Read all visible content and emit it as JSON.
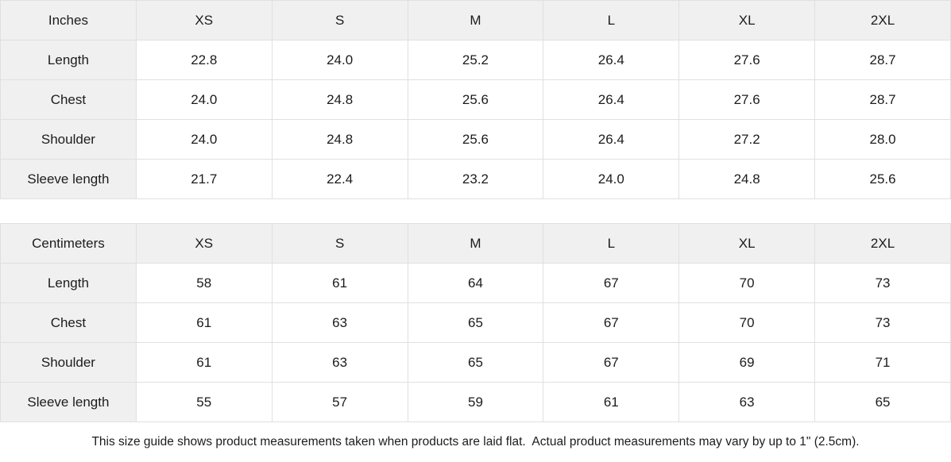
{
  "size_guide": {
    "tables": [
      {
        "unit_label": "Inches",
        "sizes": [
          "XS",
          "S",
          "M",
          "L",
          "XL",
          "2XL"
        ],
        "rows": [
          {
            "label": "Length",
            "values": [
              "22.8",
              "24.0",
              "25.2",
              "26.4",
              "27.6",
              "28.7"
            ]
          },
          {
            "label": "Chest",
            "values": [
              "24.0",
              "24.8",
              "25.6",
              "26.4",
              "27.6",
              "28.7"
            ]
          },
          {
            "label": "Shoulder",
            "values": [
              "24.0",
              "24.8",
              "25.6",
              "26.4",
              "27.2",
              "28.0"
            ]
          },
          {
            "label": "Sleeve length",
            "values": [
              "21.7",
              "22.4",
              "23.2",
              "24.0",
              "24.8",
              "25.6"
            ]
          }
        ]
      },
      {
        "unit_label": "Centimeters",
        "sizes": [
          "XS",
          "S",
          "M",
          "L",
          "XL",
          "2XL"
        ],
        "rows": [
          {
            "label": "Length",
            "values": [
              "58",
              "61",
              "64",
              "67",
              "70",
              "73"
            ]
          },
          {
            "label": "Chest",
            "values": [
              "61",
              "63",
              "65",
              "67",
              "70",
              "73"
            ]
          },
          {
            "label": "Shoulder",
            "values": [
              "61",
              "63",
              "65",
              "67",
              "69",
              "71"
            ]
          },
          {
            "label": "Sleeve length",
            "values": [
              "55",
              "57",
              "59",
              "61",
              "63",
              "65"
            ]
          }
        ]
      }
    ],
    "footer": {
      "note": "This size guide shows product measurements taken when products are laid flat.  Actual product measurements may vary by up to 1\" (2.5cm)."
    },
    "colors": {
      "header_bg": "#f0f0f0",
      "border": "#e0e0e0",
      "text": "#1c1c1c",
      "cell_bg": "#ffffff"
    }
  }
}
